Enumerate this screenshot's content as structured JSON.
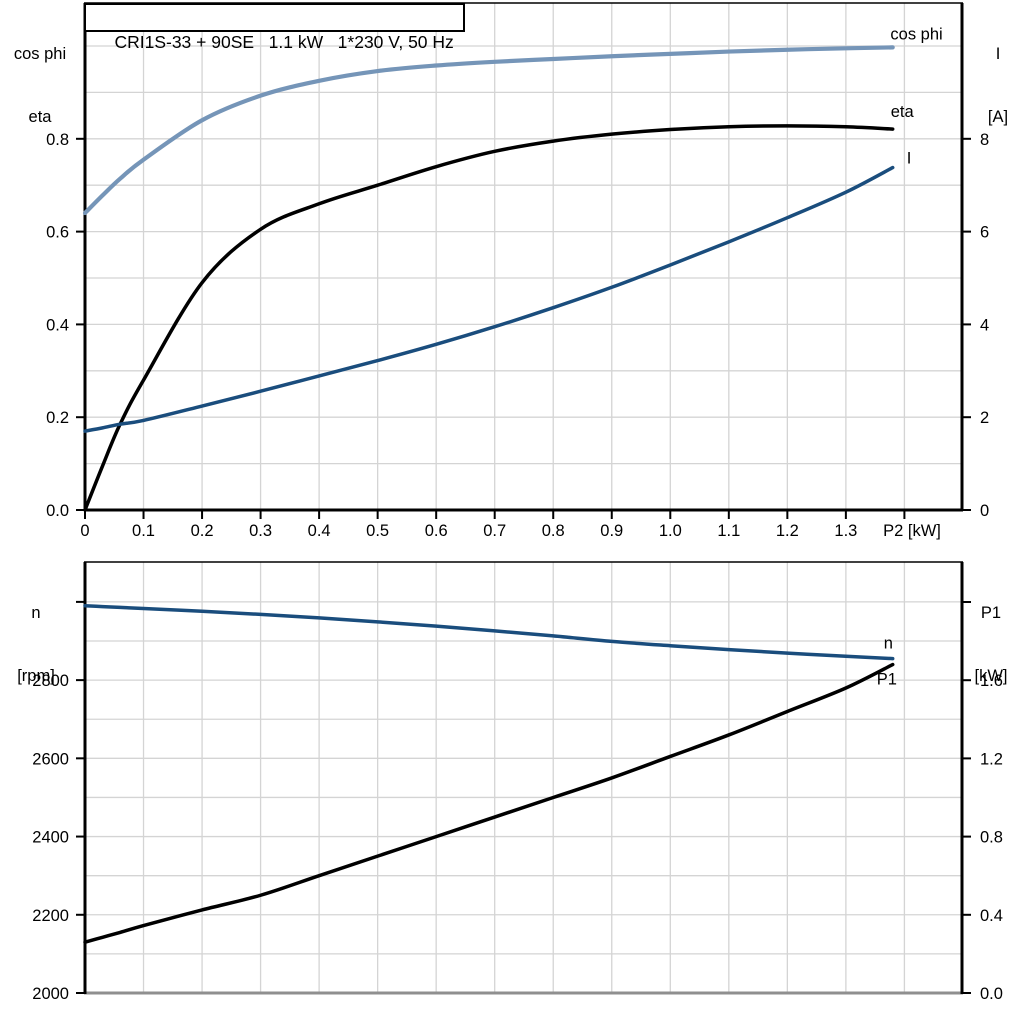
{
  "page": {
    "background": "#ffffff"
  },
  "title_box": {
    "text": "CRI1S-33 + 90SE   1.1 kW   1*230 V, 50 Hz"
  },
  "labels": {
    "top_left_line1": "cos phi",
    "top_left_line2": "eta",
    "top_right_line1": "I",
    "top_right_line2": "[A]",
    "bottom_left_line1": "n",
    "bottom_left_line2": "[rpm]",
    "bottom_right_line1": "P1",
    "bottom_right_line2": "[kW]"
  },
  "colors": {
    "light_blue": "#7595b8",
    "dark_blue": "#1a4d7d",
    "black": "#000000",
    "grid": "#d4d4d4",
    "frame_gray": "#8f8f8f",
    "background": "#ffffff"
  },
  "chart_data": [
    {
      "type": "line",
      "title": "CRI1S-33 + 90SE   1.1 kW   1*230 V, 50 Hz",
      "xlabel": "P2 [kW]",
      "ylabel_left": "cos phi / eta",
      "ylabel_right": "I [A]",
      "grid": true,
      "legend_position": "curve-end-labels",
      "xlim": [
        0,
        1.4984
      ],
      "ylim_left": [
        0,
        1.0927
      ],
      "ylim_right": [
        0,
        10.927
      ],
      "x_ticks": {
        "values": [
          0,
          0.1,
          0.2,
          0.3,
          0.4,
          0.5,
          0.6,
          0.7,
          0.8,
          0.9,
          1.0,
          1.1,
          1.2,
          1.3,
          1.4
        ],
        "labels": [
          "0",
          "0.1",
          "0.2",
          "0.3",
          "0.4",
          "0.5",
          "0.6",
          "0.7",
          "0.8",
          "0.9",
          "1.0",
          "1.1",
          "1.2",
          "1.3",
          ""
        ]
      },
      "left_ticks": {
        "values": [
          0,
          0.2,
          0.4,
          0.6,
          0.8
        ],
        "labels": [
          "0.0",
          "0.2",
          "0.4",
          "0.6",
          "0.8"
        ]
      },
      "right_ticks": {
        "values": [
          0,
          2,
          4,
          6,
          8
        ],
        "labels": [
          "0",
          "2",
          "4",
          "6",
          "8"
        ]
      },
      "x_grid": [
        0.1,
        0.2,
        0.3,
        0.4,
        0.5,
        0.6,
        0.7,
        0.8,
        0.9,
        1.0,
        1.1,
        1.2,
        1.3,
        1.4
      ],
      "y_grid": [
        0.1,
        0.2,
        0.3,
        0.4,
        0.5,
        0.6,
        0.7,
        0.8,
        0.9,
        1.0
      ],
      "series": [
        {
          "name": "cos phi",
          "axis": "left",
          "color": "#7595b8",
          "width": 4.2,
          "label_anchor": "end",
          "label_dx": 50,
          "label_dy": -8,
          "x": [
            0,
            0.03,
            0.06,
            0.1,
            0.2,
            0.3,
            0.4,
            0.5,
            0.6,
            0.7,
            0.8,
            0.9,
            1.0,
            1.1,
            1.2,
            1.3,
            1.38
          ],
          "y": [
            0.64,
            0.678,
            0.714,
            0.755,
            0.84,
            0.893,
            0.925,
            0.946,
            0.958,
            0.966,
            0.972,
            0.978,
            0.983,
            0.988,
            0.992,
            0.995,
            0.997
          ]
        },
        {
          "name": "eta",
          "axis": "left",
          "color": "#000000",
          "width": 3.5,
          "label_anchor": "start",
          "label_dx": -2,
          "label_dy": -12,
          "x": [
            0,
            0.03,
            0.06,
            0.1,
            0.2,
            0.3,
            0.4,
            0.5,
            0.6,
            0.7,
            0.8,
            0.9,
            1.0,
            1.1,
            1.2,
            1.3,
            1.38
          ],
          "y": [
            0,
            0.095,
            0.185,
            0.28,
            0.49,
            0.605,
            0.66,
            0.7,
            0.74,
            0.773,
            0.795,
            0.81,
            0.82,
            0.826,
            0.828,
            0.826,
            0.821
          ]
        },
        {
          "name": "I",
          "axis": "right",
          "color": "#1a4d7d",
          "width": 3.5,
          "label_anchor": "start",
          "label_dx": 14,
          "label_dy": -4,
          "x": [
            0,
            0.03,
            0.06,
            0.1,
            0.2,
            0.3,
            0.4,
            0.5,
            0.6,
            0.7,
            0.8,
            0.9,
            1.0,
            1.1,
            1.2,
            1.3,
            1.38
          ],
          "y": [
            1.7,
            1.77,
            1.85,
            1.93,
            2.24,
            2.56,
            2.89,
            3.22,
            3.57,
            3.95,
            4.36,
            4.8,
            5.28,
            5.78,
            6.3,
            6.85,
            7.38
          ]
        }
      ]
    },
    {
      "type": "line",
      "title": "",
      "xlabel": "",
      "ylabel_left": "n [rpm]",
      "ylabel_right": "P1 [kW]",
      "grid": true,
      "legend_position": "curve-end-labels",
      "xlim": [
        0,
        1.4984
      ],
      "ylim_left": [
        2000,
        3102
      ],
      "ylim_right": [
        0,
        2.2046
      ],
      "left_ticks": {
        "values": [
          2000,
          2200,
          2400,
          2600,
          2800,
          3000
        ],
        "labels": [
          "2000",
          "2200",
          "2400",
          "2600",
          "2800",
          ""
        ]
      },
      "right_ticks": {
        "values": [
          0,
          0.4,
          0.8,
          1.2,
          1.6,
          2.0
        ],
        "labels": [
          "0.0",
          "0.4",
          "0.8",
          "1.2",
          "1.6",
          ""
        ]
      },
      "x_grid": [
        0.1,
        0.2,
        0.3,
        0.4,
        0.5,
        0.6,
        0.7,
        0.8,
        0.9,
        1.0,
        1.1,
        1.2,
        1.3,
        1.4
      ],
      "y_grid": [
        2100,
        2200,
        2300,
        2400,
        2500,
        2600,
        2700,
        2800,
        2900,
        3000
      ],
      "series": [
        {
          "name": "n",
          "axis": "left",
          "color": "#1a4d7d",
          "width": 3.5,
          "label_anchor": "start",
          "label_dx": -9,
          "label_dy": -10,
          "x": [
            0,
            0.03,
            0.06,
            0.1,
            0.2,
            0.3,
            0.4,
            0.5,
            0.6,
            0.7,
            0.8,
            0.9,
            1.0,
            1.1,
            1.2,
            1.3,
            1.38
          ],
          "y": [
            2990,
            2988,
            2986,
            2983,
            2976,
            2968,
            2959,
            2949,
            2938,
            2926,
            2913,
            2899,
            2888,
            2878,
            2869,
            2861,
            2855
          ]
        },
        {
          "name": "P1",
          "axis": "right",
          "color": "#000000",
          "width": 3.5,
          "label_anchor": "start",
          "label_dx": -16,
          "label_dy": 20,
          "x": [
            0,
            0.03,
            0.06,
            0.1,
            0.2,
            0.3,
            0.4,
            0.5,
            0.6,
            0.7,
            0.8,
            0.9,
            1.0,
            1.1,
            1.2,
            1.3,
            1.38
          ],
          "y": [
            0.26,
            0.285,
            0.31,
            0.345,
            0.425,
            0.5,
            0.6,
            0.7,
            0.8,
            0.9,
            1.0,
            1.1,
            1.21,
            1.32,
            1.44,
            1.56,
            1.68
          ]
        }
      ]
    }
  ]
}
